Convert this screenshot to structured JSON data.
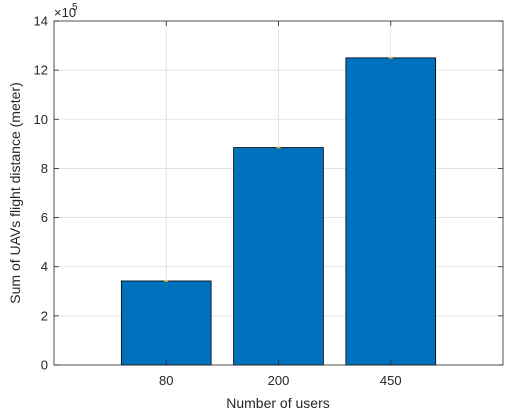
{
  "chart_data": {
    "type": "bar",
    "categories": [
      "80",
      "200",
      "450"
    ],
    "values": [
      342000,
      885000,
      1250000
    ],
    "xlabel": "Number of users",
    "ylabel": "Sum of UAVs flight distance (meter)",
    "ylim": [
      0,
      1400000
    ],
    "xlim": [
      0,
      4
    ],
    "yticks": [
      0,
      200000,
      400000,
      600000,
      800000,
      1000000,
      1200000,
      1400000
    ],
    "ytick_labels": [
      "0",
      "2",
      "4",
      "6",
      "8",
      "10",
      "12",
      "14"
    ],
    "y_exponent_base": "×10",
    "y_exponent_power": "5",
    "grid": true,
    "error_bar_color": "#EDB120",
    "colors": {
      "bar": "#0072BD",
      "bar_edge": "#000000",
      "grid": "#DFDFDF",
      "axis": "#262626",
      "background": "#FFFFFF"
    }
  }
}
